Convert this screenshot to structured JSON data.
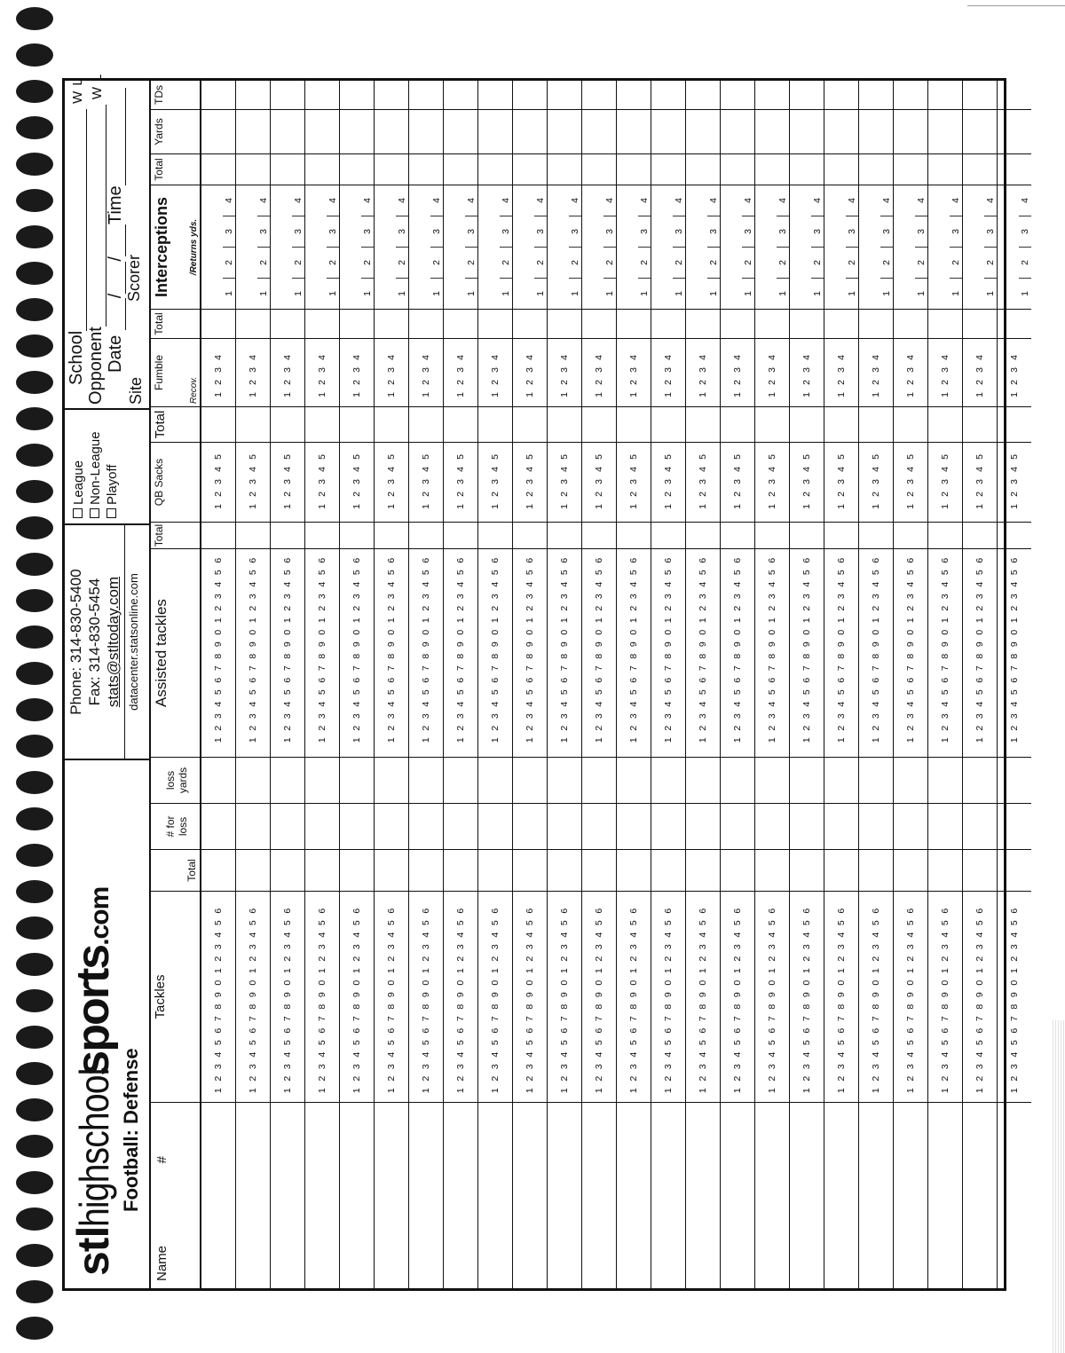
{
  "logo": {
    "part1": "stl",
    "part2": "highschool",
    "part3": "sports",
    "part4": ".com"
  },
  "subtitle": "Football: Defense",
  "contact": {
    "phone": "Phone: 314-830-5400",
    "fax": "Fax: 314-830-5454",
    "email": "stats@stltoday.com",
    "site": "datacenter.statsonline.com"
  },
  "game_type": [
    "League",
    "Non-League",
    "Playoff"
  ],
  "game_info": {
    "school": "School",
    "opponent": "Opponent",
    "date": "Date",
    "time": "Time",
    "site": "Site",
    "scorer": "Scorer",
    "w": "W",
    "l": "L",
    "slash": "/"
  },
  "columns": {
    "name": "Name",
    "number": "#",
    "tackles": "Tackles",
    "total": "Total",
    "for_loss": "# for",
    "loss": "loss",
    "loss2": "loss",
    "yards": "yards",
    "assisted": "Assisted tackles",
    "qb_sacks": "QB Sacks",
    "fumble": "Fumble",
    "recov": "Recov.",
    "interceptions": "Interceptions",
    "returns": "/Returns yds.",
    "int_yards": "Yards",
    "tds": "TDs"
  },
  "row_template": {
    "tackles": [
      "1",
      "2",
      "3",
      "4",
      "5",
      "6",
      "7",
      "8",
      "9",
      "0",
      "1",
      "2",
      "3",
      "4",
      "5",
      "6"
    ],
    "assisted": [
      "1",
      "2",
      "3",
      "4",
      "5",
      "6",
      "7",
      "8",
      "9",
      "0",
      "1",
      "2",
      "3",
      "4",
      "5",
      "6"
    ],
    "qb_sacks": [
      "1",
      "2",
      "3",
      "4",
      "5"
    ],
    "fumble": [
      "1",
      "2",
      "3",
      "4"
    ],
    "interceptions": [
      "1",
      "2",
      "3",
      "4"
    ]
  }
}
